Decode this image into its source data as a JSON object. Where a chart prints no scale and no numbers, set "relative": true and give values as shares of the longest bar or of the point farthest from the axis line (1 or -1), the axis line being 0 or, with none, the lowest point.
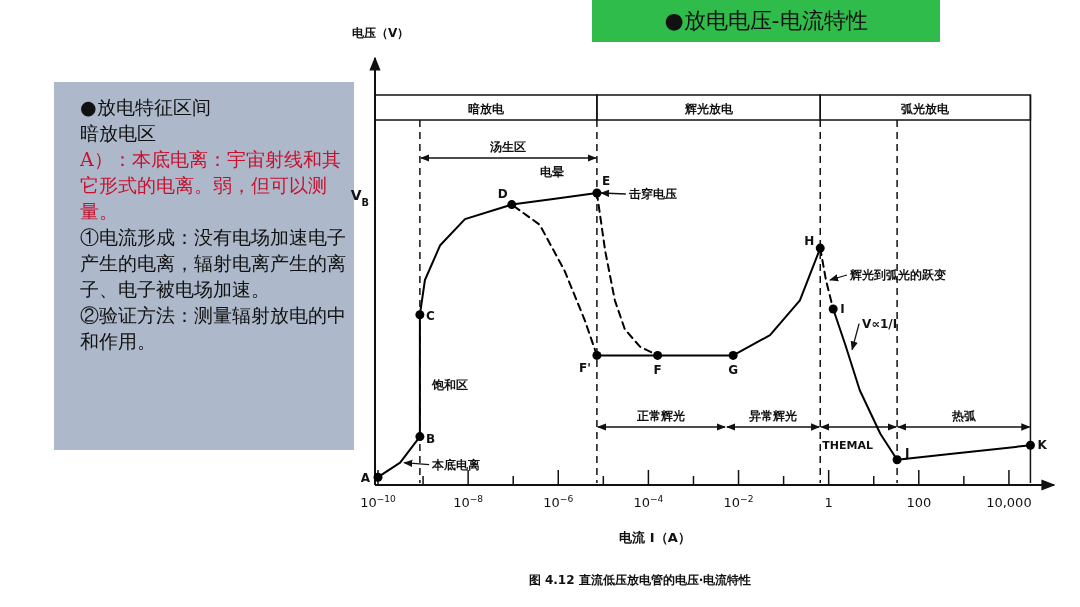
{
  "chart_data": {
    "type": "line",
    "title": "●放电电压-电流特性",
    "subtitle": "图 4.12  直流低压放电管的电压·电流特性",
    "xlabel": "电流 I（A）",
    "log": "x",
    "relative": true,
    "xlim": [
      1e-10,
      100000.0
    ],
    "xticks": [
      {
        "value": 1e-10,
        "label": "10$^{−10}$"
      },
      {
        "value": 1e-09,
        "label": null
      },
      {
        "value": 1e-08,
        "label": "10$^{−8}$"
      },
      {
        "value": 1e-07,
        "label": null
      },
      {
        "value": 1e-06,
        "label": "10$^{−6}$"
      },
      {
        "value": 1e-05,
        "label": null
      },
      {
        "value": 0.0001,
        "label": "10$^{−4}$"
      },
      {
        "value": 0.001,
        "label": null
      },
      {
        "value": 0.01,
        "label": "10$^{−2}$"
      },
      {
        "value": 0.1,
        "label": null
      },
      1,
      {
        "value": 10,
        "label": null
      },
      100,
      {
        "value": 1000,
        "label": null
      },
      {
        "value": 10000,
        "label": "10,000"
      }
    ],
    "series": [
      {
        "type": "line",
        "line_style": "solid",
        "color": "#000000",
        "x": [
          1e-10,
          3.1e-10,
          8.5e-10,
          8.5e-10,
          1.1e-09,
          2.4e-09,
          8.5e-09,
          9.3e-08,
          8.5e-07,
          7.2e-06
        ],
        "values": [
          0.02,
          0.07,
          0.16,
          0.58,
          0.7,
          0.82,
          0.91,
          0.96,
          0.98,
          1.0
        ]
      },
      {
        "type": "line",
        "line_style": "solid",
        "color": "#000000",
        "x": [
          7.2e-06,
          0.00016,
          0.0076,
          0.05,
          0.23,
          0.65
        ],
        "values": [
          0.44,
          0.44,
          0.44,
          0.51,
          0.63,
          0.81
        ]
      },
      {
        "type": "line",
        "line_style": "solid",
        "color": "#000000",
        "x": [
          1.26,
          2.3,
          4.9,
          14,
          33,
          490,
          30000
        ],
        "values": [
          0.6,
          0.48,
          0.32,
          0.17,
          0.08,
          0.1,
          0.13
        ]
      },
      {
        "type": "line",
        "line_style": "dashed",
        "color": "#000000",
        "x": [
          7.2e-06,
          1.1e-05,
          1.8e-05,
          3e-05,
          6.5e-05,
          0.00016
        ],
        "values": [
          1.0,
          0.8,
          0.63,
          0.53,
          0.47,
          0.44
        ]
      },
      {
        "type": "line",
        "line_style": "dashed",
        "color": "#000000",
        "x": [
          7.2e-06,
          3.9e-06,
          1.4e-06,
          3.9e-07,
          9.3e-08
        ],
        "values": [
          0.44,
          0.56,
          0.73,
          0.89,
          0.96
        ]
      },
      {
        "type": "line",
        "line_style": "dashed",
        "color": "#000000",
        "x": [
          0.65,
          0.87,
          1.26
        ],
        "values": [
          0.81,
          0.7,
          0.6
        ]
      },
      {
        "type": "scatter",
        "marker": "circle",
        "color": "#000000",
        "x": [
          1e-10,
          8.5e-10,
          8.5e-10,
          9.3e-08,
          7.2e-06,
          7.2e-06,
          0.00016,
          0.0076,
          0.65,
          1.26,
          33,
          30000
        ],
        "values": [
          0.02,
          0.16,
          0.58,
          0.96,
          1.0,
          0.44,
          0.44,
          0.44,
          0.81,
          0.6,
          0.08,
          0.13
        ]
      }
    ],
    "ref_lines": [
      {
        "axis": "x",
        "value": 8.5e-10,
        "line_style": "dashed"
      },
      {
        "axis": "x",
        "value": 7.2e-06,
        "line_style": "dashed"
      },
      {
        "axis": "x",
        "value": 0.65,
        "line_style": "dashed"
      },
      {
        "axis": "x",
        "value": 33,
        "line_style": "dashed"
      },
      {
        "axis": "x",
        "value": 30000,
        "line_style": "solid"
      }
    ],
    "annotations": [
      "●放电特征区间",
      "暗放电区",
      "A）：本底电离：宇宙射线和其它形式的电离。弱，但可以测量。",
      "①电流形成：没有电场加速电子产生的电离，辐射电离产生的离子、电子被电场加速。",
      "②验证方法：测量辐射放电的中和作用。",
      "电晕",
      "V$_{B}$",
      "电压（V）",
      {
        "text": "A",
        "x": 1e-10,
        "y": 0.02
      },
      {
        "text": "B",
        "x": 8.5e-10,
        "y": 0.16
      },
      {
        "text": "C",
        "x": 8.5e-10,
        "y": 0.58
      },
      {
        "text": "D",
        "x": 9.3e-08,
        "y": 0.96
      },
      {
        "text": "E",
        "x": 7.2e-06,
        "y": 1.0
      },
      {
        "text": "F'",
        "x": 7.2e-06,
        "y": 0.44
      },
      {
        "text": "F",
        "x": 0.00016,
        "y": 0.44
      },
      {
        "text": "G",
        "x": 0.0076,
        "y": 0.44
      },
      {
        "text": "H",
        "x": 0.65,
        "y": 0.81
      },
      {
        "text": "I",
        "x": 1.26,
        "y": 0.6
      },
      {
        "text": "J",
        "x": 33,
        "y": 0.08
      },
      {
        "text": "K",
        "x": 30000,
        "y": 0.13
      },
      {
        "text": "击穿电压",
        "x": 7.2e-06,
        "y": 1.0
      },
      {
        "text": "饱和区",
        "x": 8.5e-10,
        "y": 0.34
      },
      {
        "text": "本底电离",
        "x": 3.1e-10,
        "y": 0.07
      },
      {
        "text": "辉光到弧光的跃变",
        "x": 0.87,
        "y": 0.7
      },
      {
        "text": "V∝1/I",
        "x": 2.7,
        "y": 0.46
      },
      "暗放电",
      "辉光放电",
      "弧光放电",
      "正常辉光",
      "异常辉光",
      "THEMAL",
      "热弧",
      "汤生区"
    ]
  }
}
